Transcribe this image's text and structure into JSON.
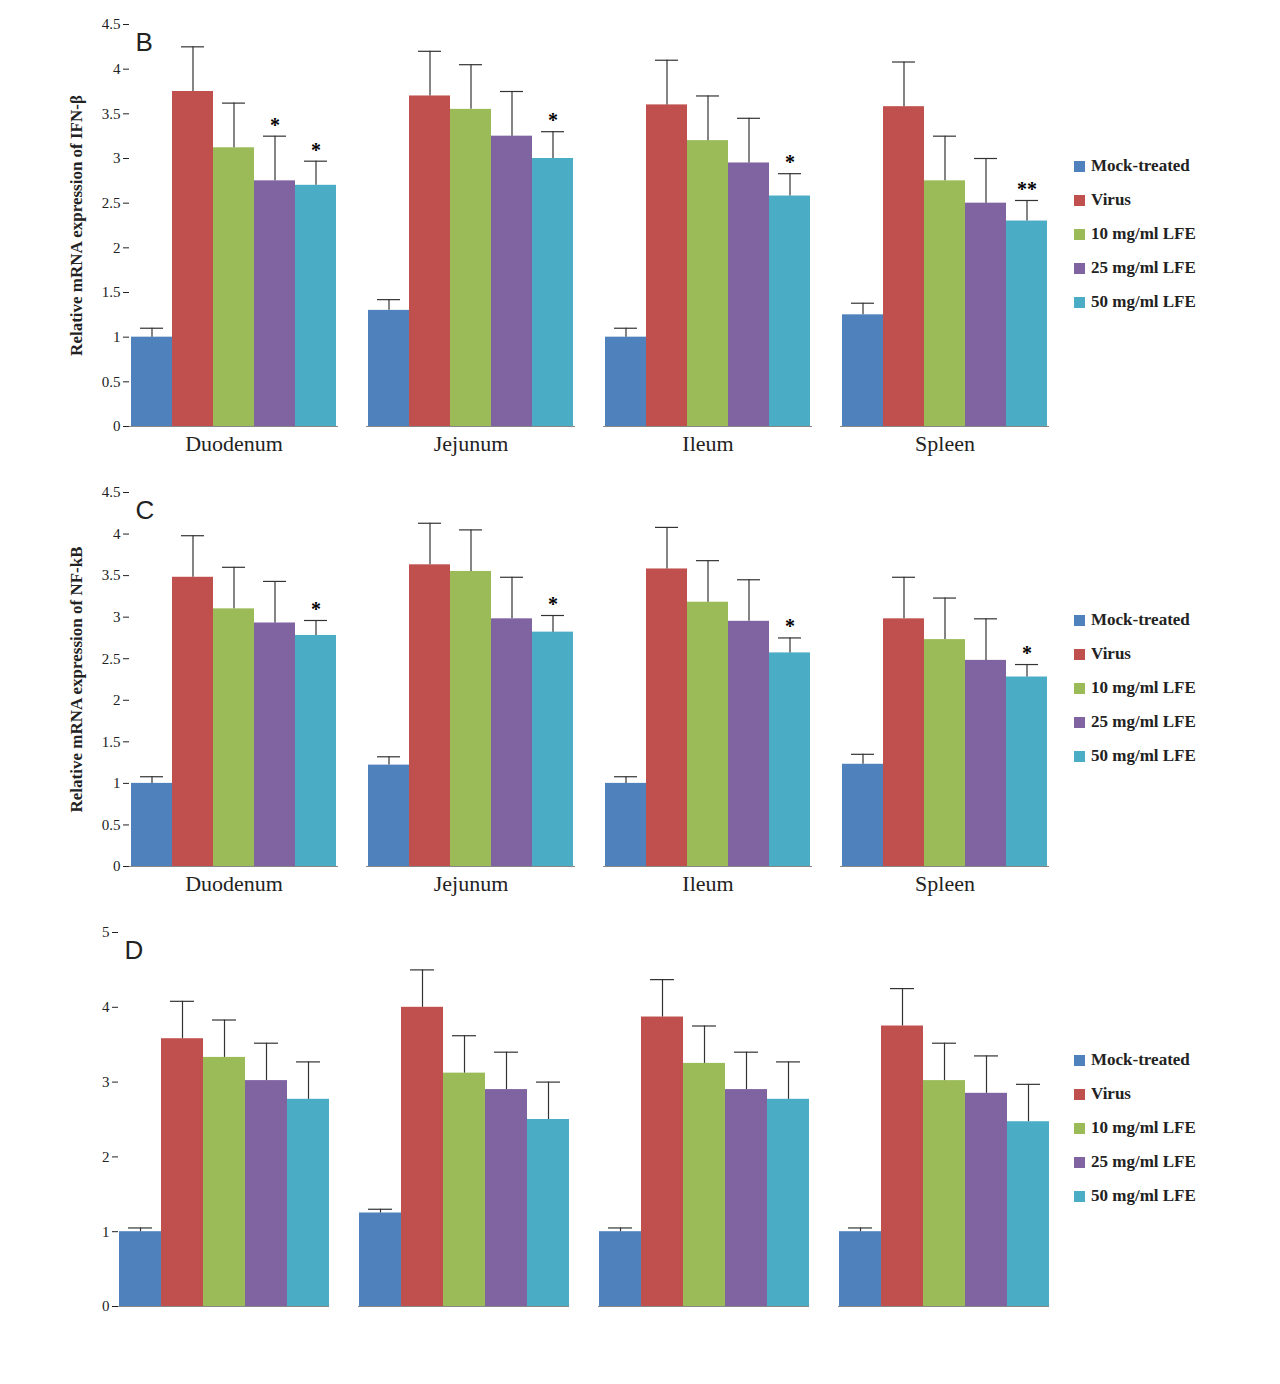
{
  "chart_data": [
    {
      "type": "bar",
      "title": "B",
      "y_label": "Relative mRNA expression of IFN-β",
      "categories": [
        "Duodenum",
        "Jejunum",
        "Ileum",
        "Spleen"
      ],
      "ylim": [
        0,
        4.5
      ],
      "yticks": [
        0,
        0.5,
        1,
        1.5,
        2,
        2.5,
        3,
        3.5,
        4,
        4.5
      ],
      "grid": false,
      "legend": "right",
      "series": [
        {
          "name": "Mock-treated",
          "color": "#4f81bd",
          "values": [
            1.0,
            1.3,
            1.0,
            1.25
          ],
          "errors": [
            0.1,
            0.12,
            0.1,
            0.13
          ],
          "significance": [
            null,
            null,
            null,
            null
          ]
        },
        {
          "name": "Virus",
          "color": "#c0504d",
          "values": [
            3.75,
            3.7,
            3.6,
            3.58
          ],
          "errors": [
            0.5,
            0.5,
            0.5,
            0.5
          ],
          "significance": [
            null,
            null,
            null,
            null
          ]
        },
        {
          "name": "10 mg/ml LFE",
          "color": "#9bbb59",
          "values": [
            3.12,
            3.55,
            3.2,
            2.75
          ],
          "errors": [
            0.5,
            0.5,
            0.5,
            0.5
          ],
          "significance": [
            null,
            null,
            null,
            null
          ]
        },
        {
          "name": "25 mg/ml LFE",
          "color": "#8064a2",
          "values": [
            2.75,
            3.25,
            2.95,
            2.5
          ],
          "errors": [
            0.5,
            0.5,
            0.5,
            0.5
          ],
          "significance": [
            "*",
            null,
            null,
            null
          ]
        },
        {
          "name": "50 mg/ml LFE",
          "color": "#4bacc6",
          "values": [
            2.7,
            3.0,
            2.58,
            2.3
          ],
          "errors": [
            0.27,
            0.3,
            0.25,
            0.23
          ],
          "significance": [
            "*",
            "*",
            "*",
            "**"
          ]
        }
      ]
    },
    {
      "type": "bar",
      "title": "C",
      "y_label": "Relative mRNA expression of NF-kB",
      "categories": [
        "Duodenum",
        "Jejunum",
        "Ileum",
        "Spleen"
      ],
      "ylim": [
        0,
        4.5
      ],
      "yticks": [
        0,
        0.5,
        1,
        1.5,
        2,
        2.5,
        3,
        3.5,
        4,
        4.5
      ],
      "grid": false,
      "legend": "right",
      "series": [
        {
          "name": "Mock-treated",
          "color": "#4f81bd",
          "values": [
            1.0,
            1.22,
            1.0,
            1.23
          ],
          "errors": [
            0.08,
            0.1,
            0.08,
            0.12
          ],
          "significance": [
            null,
            null,
            null,
            null
          ]
        },
        {
          "name": "Virus",
          "color": "#c0504d",
          "values": [
            3.48,
            3.63,
            3.58,
            2.98
          ],
          "errors": [
            0.5,
            0.5,
            0.5,
            0.5
          ],
          "significance": [
            null,
            null,
            null,
            null
          ]
        },
        {
          "name": "10 mg/ml LFE",
          "color": "#9bbb59",
          "values": [
            3.1,
            3.55,
            3.18,
            2.73
          ],
          "errors": [
            0.5,
            0.5,
            0.5,
            0.5
          ],
          "significance": [
            null,
            null,
            null,
            null
          ]
        },
        {
          "name": "25 mg/ml LFE",
          "color": "#8064a2",
          "values": [
            2.93,
            2.98,
            2.95,
            2.48
          ],
          "errors": [
            0.5,
            0.5,
            0.5,
            0.5
          ],
          "significance": [
            null,
            null,
            null,
            null
          ]
        },
        {
          "name": "50 mg/ml LFE",
          "color": "#4bacc6",
          "values": [
            2.78,
            2.82,
            2.57,
            2.28
          ],
          "errors": [
            0.18,
            0.2,
            0.18,
            0.15
          ],
          "significance": [
            "*",
            "*",
            "*",
            "*"
          ]
        }
      ]
    },
    {
      "type": "bar",
      "title": "D",
      "categories": [
        null,
        null,
        null,
        null
      ],
      "ylim": [
        0,
        5
      ],
      "yticks": [
        0,
        1,
        2,
        3,
        4,
        5
      ],
      "grid": false,
      "legend": "right",
      "series": [
        {
          "name": "Mock-treated",
          "color": "#4f81bd",
          "values": [
            1.0,
            1.25,
            1.0,
            1.0
          ],
          "errors": [
            0.05,
            0.05,
            0.05,
            0.05
          ]
        },
        {
          "name": "Virus",
          "color": "#c0504d",
          "values": [
            3.58,
            4.0,
            3.87,
            3.75
          ],
          "errors": [
            0.5,
            0.5,
            0.5,
            0.5
          ]
        },
        {
          "name": "10 mg/ml LFE",
          "color": "#9bbb59",
          "values": [
            3.33,
            3.12,
            3.25,
            3.02
          ],
          "errors": [
            0.5,
            0.5,
            0.5,
            0.5
          ]
        },
        {
          "name": "25 mg/ml LFE",
          "color": "#8064a2",
          "values": [
            3.02,
            2.9,
            2.9,
            2.85
          ],
          "errors": [
            0.5,
            0.5,
            0.5,
            0.5
          ]
        },
        {
          "name": "50 mg/ml LFE",
          "color": "#4bacc6",
          "values": [
            2.77,
            2.5,
            2.77,
            2.47
          ],
          "errors": [
            0.5,
            0.5,
            0.5,
            0.5
          ]
        }
      ]
    }
  ]
}
